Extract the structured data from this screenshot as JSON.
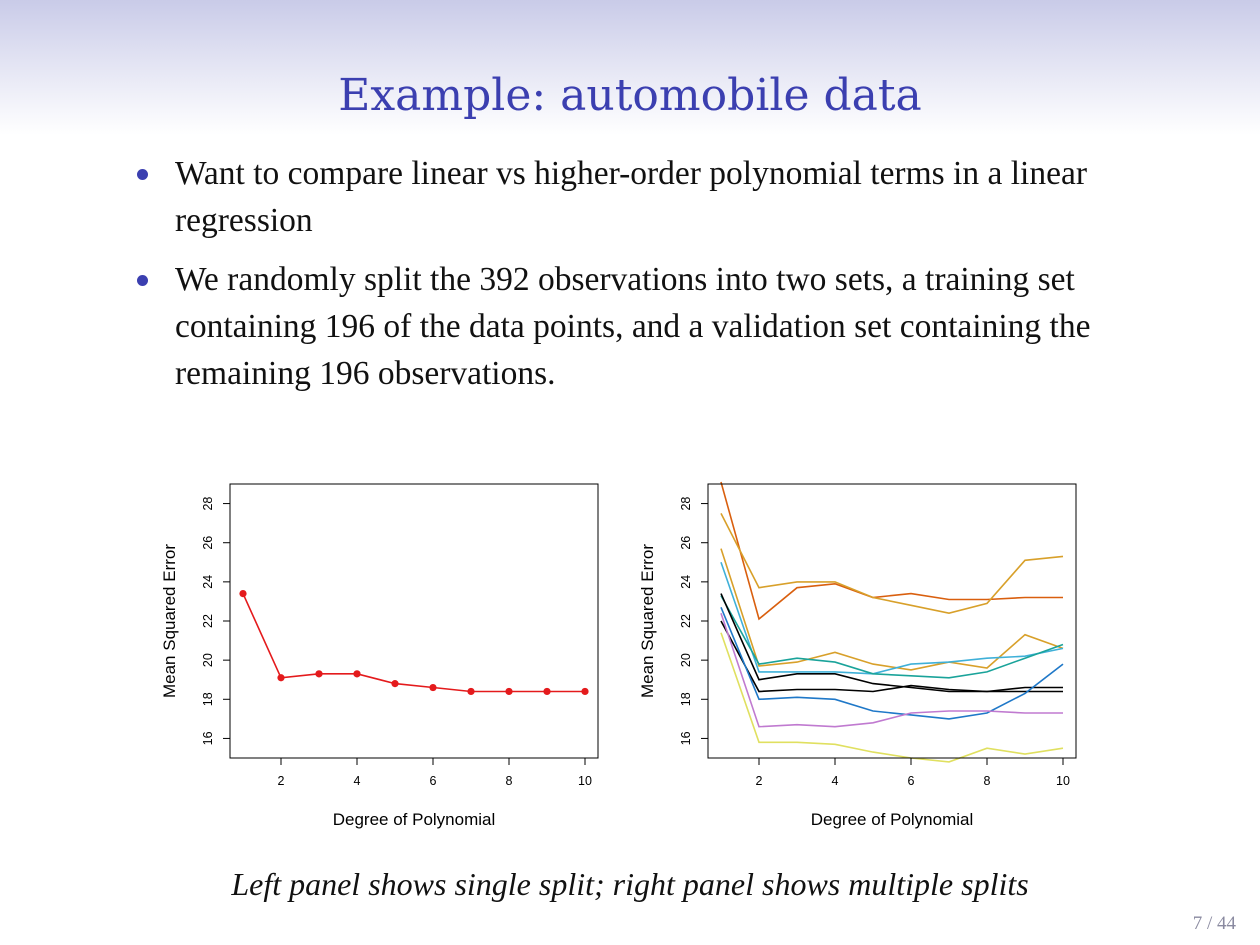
{
  "slide": {
    "title": "Example: automobile data",
    "bullets": [
      "Want to compare linear vs higher-order polynomial terms in a linear regression",
      "We randomly split the 392 observations into two sets, a training set containing 196 of the data points, and a validation set containing the remaining 196 observations."
    ],
    "caption": "Left panel shows single split; right panel shows multiple splits",
    "page_number": "7 / 44",
    "colors": {
      "title": "#3b3fb0",
      "bullet": "#3b3fb0"
    }
  },
  "chart_data": [
    {
      "type": "line",
      "panel": "left",
      "xlabel": "Degree of Polynomial",
      "ylabel": "Mean Squared Error",
      "xlim": [
        1,
        10
      ],
      "ylim": [
        15,
        29
      ],
      "xticks": [
        2,
        4,
        6,
        8,
        10
      ],
      "yticks": [
        16,
        18,
        20,
        22,
        24,
        26,
        28
      ],
      "markers": true,
      "series": [
        {
          "color": "#e41a1c",
          "x": [
            1,
            2,
            3,
            4,
            5,
            6,
            7,
            8,
            9,
            10
          ],
          "values": [
            23.4,
            19.1,
            19.3,
            19.3,
            18.8,
            18.6,
            18.4,
            18.4,
            18.4,
            18.4
          ]
        }
      ]
    },
    {
      "type": "line",
      "panel": "right",
      "xlabel": "Degree of Polynomial",
      "ylabel": "Mean Squared Error",
      "xlim": [
        1,
        10
      ],
      "ylim": [
        15,
        29
      ],
      "xticks": [
        2,
        4,
        6,
        8,
        10
      ],
      "yticks": [
        16,
        18,
        20,
        22,
        24,
        26,
        28
      ],
      "markers": false,
      "series": [
        {
          "color": "#d95f0e",
          "x": [
            1,
            2,
            3,
            4,
            5,
            6,
            7,
            8,
            9,
            10
          ],
          "values": [
            29.1,
            22.1,
            23.7,
            23.9,
            23.2,
            23.4,
            23.1,
            23.1,
            23.2,
            23.2
          ]
        },
        {
          "color": "#d8a02a",
          "x": [
            1,
            2,
            3,
            4,
            5,
            6,
            7,
            8,
            9,
            10
          ],
          "values": [
            27.5,
            23.7,
            24.0,
            24.0,
            23.2,
            22.8,
            22.4,
            22.9,
            25.1,
            25.3
          ]
        },
        {
          "color": "#d8a02a",
          "x": [
            1,
            2,
            3,
            4,
            5,
            6,
            7,
            8,
            9,
            10
          ],
          "values": [
            25.7,
            19.7,
            19.9,
            20.4,
            19.8,
            19.5,
            19.9,
            19.6,
            21.3,
            20.6
          ]
        },
        {
          "color": "#3fb0d8",
          "x": [
            1,
            2,
            3,
            4,
            5,
            6,
            7,
            8,
            9,
            10
          ],
          "values": [
            25.0,
            19.4,
            19.4,
            19.4,
            19.3,
            19.8,
            19.9,
            20.1,
            20.2,
            20.6
          ]
        },
        {
          "color": "#1aa39a",
          "x": [
            1,
            2,
            3,
            4,
            5,
            6,
            7,
            8,
            9,
            10
          ],
          "values": [
            23.3,
            19.8,
            20.1,
            19.9,
            19.3,
            19.2,
            19.1,
            19.4,
            20.1,
            20.8
          ]
        },
        {
          "color": "#000000",
          "x": [
            1,
            2,
            3,
            4,
            5,
            6,
            7,
            8,
            9,
            10
          ],
          "values": [
            23.4,
            19.0,
            19.3,
            19.3,
            18.8,
            18.6,
            18.4,
            18.4,
            18.6,
            18.6
          ]
        },
        {
          "color": "#000000",
          "x": [
            1,
            2,
            3,
            4,
            5,
            6,
            7,
            8,
            9,
            10
          ],
          "values": [
            22.0,
            18.4,
            18.5,
            18.5,
            18.4,
            18.7,
            18.5,
            18.4,
            18.4,
            18.4
          ]
        },
        {
          "color": "#1f78c8",
          "x": [
            1,
            2,
            3,
            4,
            5,
            6,
            7,
            8,
            9,
            10
          ],
          "values": [
            22.7,
            18.0,
            18.1,
            18.0,
            17.4,
            17.2,
            17.0,
            17.3,
            18.3,
            19.8
          ]
        },
        {
          "color": "#c07ad0",
          "x": [
            1,
            2,
            3,
            4,
            5,
            6,
            7,
            8,
            9,
            10
          ],
          "values": [
            22.4,
            16.6,
            16.7,
            16.6,
            16.8,
            17.3,
            17.4,
            17.4,
            17.3,
            17.3
          ]
        },
        {
          "color": "#e0e060",
          "x": [
            1,
            2,
            3,
            4,
            5,
            6,
            7,
            8,
            9,
            10
          ],
          "values": [
            21.4,
            15.8,
            15.8,
            15.7,
            15.3,
            15.0,
            14.8,
            15.5,
            15.2,
            15.5
          ]
        }
      ]
    }
  ]
}
